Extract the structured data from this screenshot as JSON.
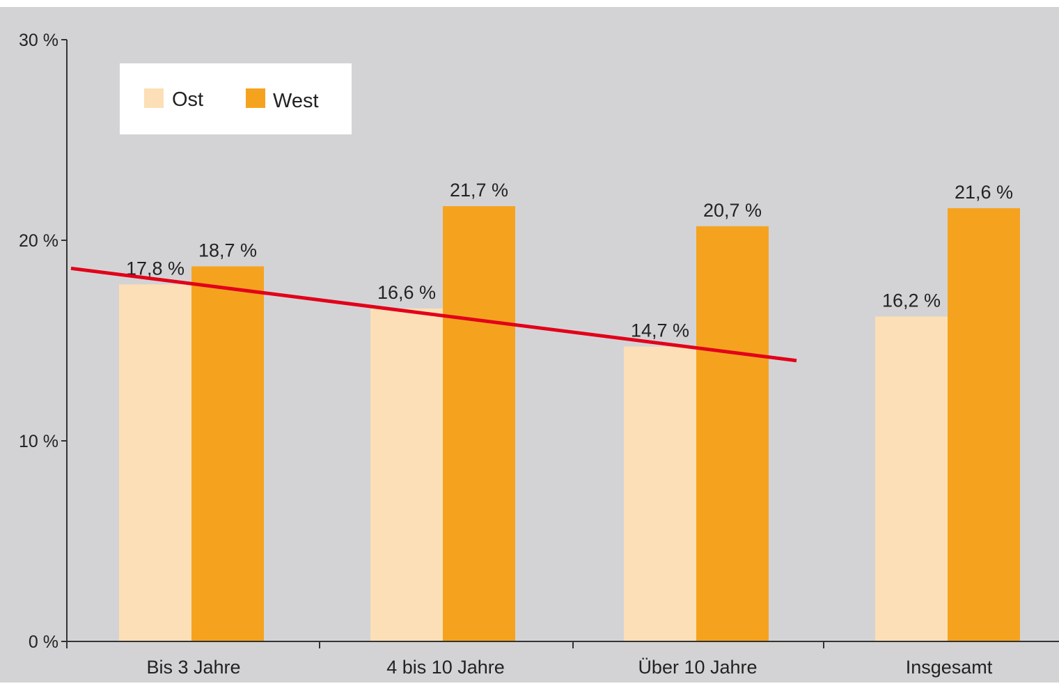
{
  "colors": {
    "plot_background": "#d3d3d5",
    "ost": "#fcdfb6",
    "west": "#f5a31f",
    "trend_line": "#e2001a",
    "axis": "#333333"
  },
  "chart_data": {
    "type": "bar",
    "categories": [
      "Bis 3 Jahre",
      "4 bis 10 Jahre",
      "Über 10 Jahre",
      "Insgesamt"
    ],
    "series": [
      {
        "name": "Ost",
        "values": [
          17.8,
          16.6,
          14.7,
          16.2
        ],
        "labels": [
          "17,8 %",
          "16,6 %",
          "14,7 %",
          "16,2 %"
        ]
      },
      {
        "name": "West",
        "values": [
          18.7,
          21.7,
          20.7,
          21.6
        ],
        "labels": [
          "18,7 %",
          "21,7 %",
          "20,7 %",
          "21,6 %"
        ]
      }
    ],
    "yticks": [
      0,
      10,
      20,
      30
    ],
    "ytick_labels": [
      "0 %",
      "10 %",
      "20 %",
      "30 %"
    ],
    "ylim": [
      0,
      30
    ],
    "legend": {
      "position": "top-left"
    },
    "grid": false,
    "annotations": [
      {
        "type": "trend-line",
        "description": "red line spanning the Ost bars of the first three categories",
        "y_start": 18.6,
        "y_end": 14.0
      }
    ]
  }
}
